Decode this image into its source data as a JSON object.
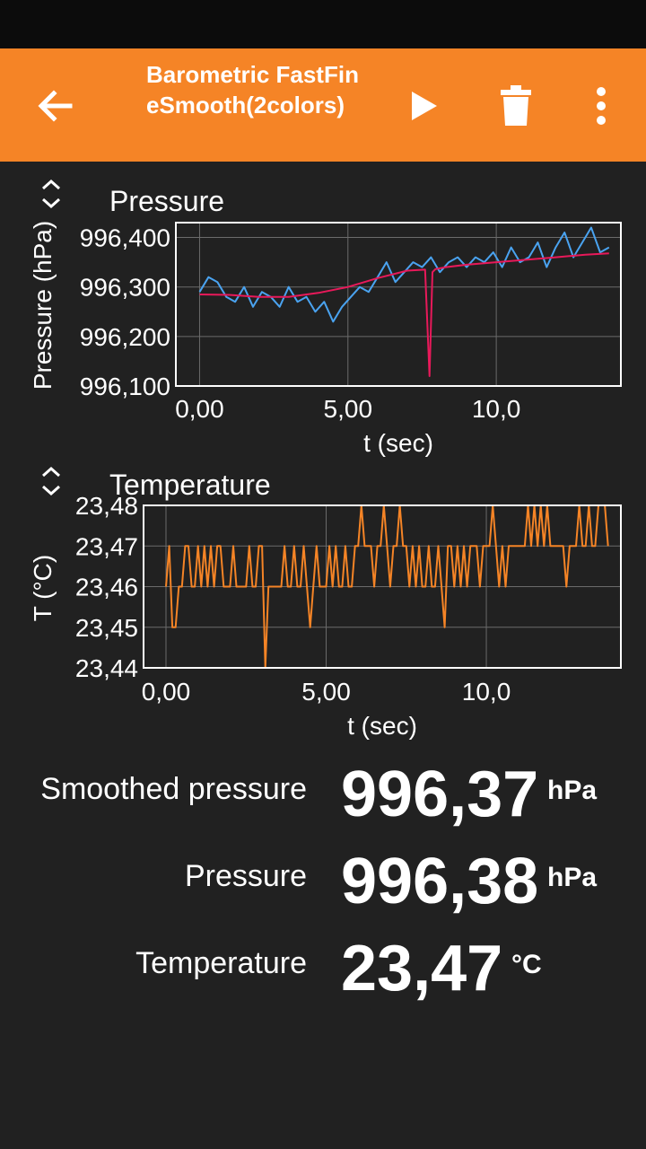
{
  "app": {
    "title_line1": "Barometric FastFin",
    "title_line2": "eSmooth(2colors)",
    "icons": {
      "back": "arrow-left-icon",
      "play": "play-icon",
      "delete": "trash-icon",
      "menu": "more-vert-icon"
    },
    "accent_color": "#f58426"
  },
  "chart_data": [
    {
      "type": "line",
      "title": "Pressure",
      "xlabel": "t (sec)",
      "ylabel": "Pressure (hPa)",
      "xlim": [
        -0.8,
        14.2
      ],
      "ylim": [
        996100,
        996430
      ],
      "xticks": [
        0,
        5,
        10
      ],
      "xtick_labels": [
        "0,00",
        "5,00",
        "10,0"
      ],
      "yticks": [
        996100,
        996200,
        996300,
        996400
      ],
      "ytick_labels": [
        "996,100",
        "996,200",
        "996,300",
        "996,400"
      ],
      "grid": true,
      "series": [
        {
          "color": "#4aa3f0",
          "x": [
            0,
            0.3,
            0.6,
            0.9,
            1.2,
            1.5,
            1.8,
            2.1,
            2.4,
            2.7,
            3.0,
            3.3,
            3.6,
            3.9,
            4.2,
            4.5,
            4.8,
            5.1,
            5.4,
            5.7,
            6.0,
            6.3,
            6.6,
            6.9,
            7.2,
            7.5,
            7.8,
            8.1,
            8.4,
            8.7,
            9.0,
            9.3,
            9.6,
            9.9,
            10.2,
            10.5,
            10.8,
            11.1,
            11.4,
            11.7,
            12.0,
            12.3,
            12.6,
            12.9,
            13.2,
            13.5,
            13.8
          ],
          "y": [
            996290,
            996320,
            996310,
            996280,
            996270,
            996300,
            996260,
            996290,
            996280,
            996260,
            996300,
            996270,
            996280,
            996250,
            996270,
            996230,
            996260,
            996280,
            996300,
            996290,
            996320,
            996350,
            996310,
            996330,
            996350,
            996340,
            996360,
            996330,
            996350,
            996360,
            996340,
            996360,
            996350,
            996370,
            996340,
            996380,
            996350,
            996360,
            996390,
            996340,
            996380,
            996410,
            996360,
            996390,
            996420,
            996370,
            996380
          ]
        },
        {
          "color": "#e8195a",
          "x": [
            0,
            1,
            2,
            3,
            4,
            5,
            6,
            7,
            7.6,
            7.75,
            7.85,
            7.95,
            8.3,
            9,
            10,
            11,
            12,
            13,
            13.8
          ],
          "y": [
            996285,
            996284,
            996280,
            996280,
            996288,
            996300,
            996318,
            996333,
            996335,
            996120,
            996330,
            996336,
            996340,
            996345,
            996350,
            996355,
            996360,
            996365,
            996368
          ]
        }
      ]
    },
    {
      "type": "line",
      "title": "Temperature",
      "xlabel": "t (sec)",
      "ylabel": "T (°C)",
      "xlim": [
        -0.7,
        14.2
      ],
      "ylim": [
        23.44,
        23.48
      ],
      "xticks": [
        0,
        5,
        10
      ],
      "xtick_labels": [
        "0,00",
        "5,00",
        "10,0"
      ],
      "yticks": [
        23.44,
        23.45,
        23.46,
        23.47,
        23.48
      ],
      "ytick_labels": [
        "23,44",
        "23,45",
        "23,46",
        "23,47",
        "23,48"
      ],
      "grid": true,
      "series": [
        {
          "color": "#f58426",
          "x": [
            0,
            0.1,
            0.2,
            0.3,
            0.4,
            0.5,
            0.6,
            0.7,
            0.8,
            0.9,
            1.0,
            1.1,
            1.2,
            1.3,
            1.4,
            1.5,
            1.6,
            1.7,
            1.8,
            1.9,
            2.0,
            2.1,
            2.2,
            2.3,
            2.4,
            2.5,
            2.6,
            2.7,
            2.8,
            2.9,
            3.0,
            3.1,
            3.2,
            3.3,
            3.4,
            3.5,
            3.6,
            3.7,
            3.8,
            3.9,
            4.0,
            4.1,
            4.2,
            4.3,
            4.4,
            4.5,
            4.6,
            4.7,
            4.8,
            4.9,
            5.0,
            5.1,
            5.2,
            5.3,
            5.4,
            5.5,
            5.6,
            5.7,
            5.8,
            5.9,
            6.0,
            6.1,
            6.2,
            6.3,
            6.4,
            6.5,
            6.6,
            6.7,
            6.8,
            6.9,
            7.0,
            7.1,
            7.2,
            7.3,
            7.4,
            7.5,
            7.6,
            7.7,
            7.8,
            7.9,
            8.0,
            8.1,
            8.2,
            8.3,
            8.4,
            8.5,
            8.6,
            8.7,
            8.8,
            8.9,
            9.0,
            9.1,
            9.2,
            9.3,
            9.4,
            9.5,
            9.6,
            9.7,
            9.8,
            9.9,
            10.0,
            10.1,
            10.2,
            10.3,
            10.4,
            10.5,
            10.6,
            10.7,
            10.8,
            10.9,
            11.0,
            11.1,
            11.2,
            11.3,
            11.4,
            11.5,
            11.6,
            11.7,
            11.8,
            11.9,
            12.0,
            12.1,
            12.2,
            12.3,
            12.4,
            12.5,
            12.6,
            12.7,
            12.8,
            12.9,
            13.0,
            13.1,
            13.2,
            13.3,
            13.4,
            13.5,
            13.6,
            13.7,
            13.8
          ],
          "y": [
            23.46,
            23.47,
            23.45,
            23.45,
            23.46,
            23.46,
            23.47,
            23.47,
            23.46,
            23.46,
            23.47,
            23.46,
            23.47,
            23.46,
            23.47,
            23.46,
            23.47,
            23.47,
            23.46,
            23.46,
            23.46,
            23.47,
            23.46,
            23.46,
            23.46,
            23.46,
            23.47,
            23.46,
            23.46,
            23.47,
            23.47,
            23.44,
            23.46,
            23.46,
            23.46,
            23.46,
            23.46,
            23.47,
            23.46,
            23.46,
            23.47,
            23.46,
            23.46,
            23.47,
            23.46,
            23.45,
            23.46,
            23.47,
            23.46,
            23.46,
            23.46,
            23.47,
            23.46,
            23.47,
            23.46,
            23.46,
            23.47,
            23.46,
            23.46,
            23.47,
            23.47,
            23.48,
            23.47,
            23.47,
            23.47,
            23.46,
            23.47,
            23.47,
            23.48,
            23.47,
            23.46,
            23.47,
            23.47,
            23.48,
            23.47,
            23.47,
            23.46,
            23.47,
            23.46,
            23.47,
            23.46,
            23.46,
            23.47,
            23.46,
            23.46,
            23.47,
            23.46,
            23.45,
            23.47,
            23.47,
            23.46,
            23.47,
            23.46,
            23.47,
            23.46,
            23.47,
            23.47,
            23.47,
            23.46,
            23.47,
            23.47,
            23.47,
            23.48,
            23.47,
            23.46,
            23.47,
            23.46,
            23.47,
            23.47,
            23.47,
            23.47,
            23.47,
            23.47,
            23.48,
            23.47,
            23.48,
            23.47,
            23.48,
            23.47,
            23.48,
            23.47,
            23.47,
            23.47,
            23.47,
            23.47,
            23.46,
            23.47,
            23.47,
            23.47,
            23.48,
            23.47,
            23.47,
            23.48,
            23.47,
            23.47,
            23.48,
            23.48,
            23.48,
            23.47
          ]
        }
      ]
    }
  ],
  "readouts": [
    {
      "label": "Smoothed pressure",
      "value": "996,37",
      "unit": "hPa"
    },
    {
      "label": "Pressure",
      "value": "996,38",
      "unit": "hPa"
    },
    {
      "label": "Temperature",
      "value": "23,47",
      "unit": "°C"
    }
  ]
}
